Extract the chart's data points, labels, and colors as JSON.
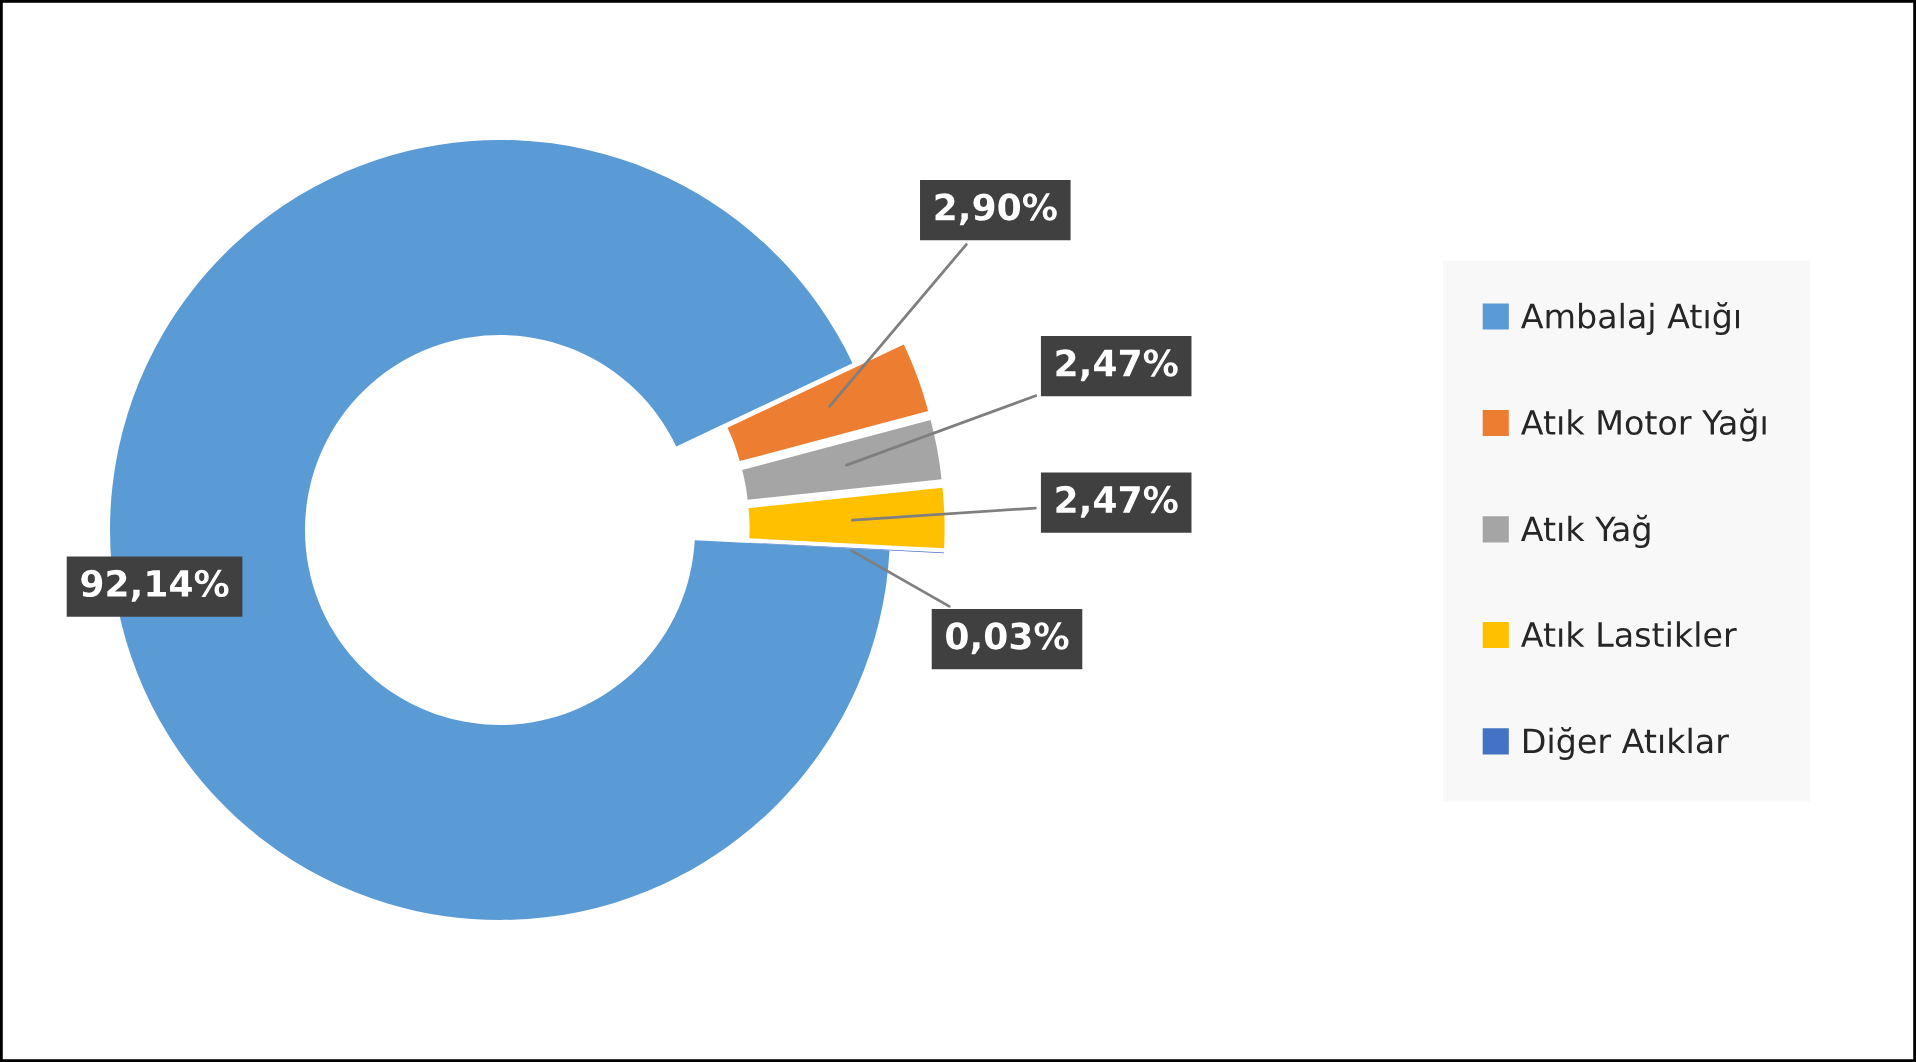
{
  "chart_data": {
    "type": "donut",
    "categories": [
      "Ambalaj Atığı",
      "Atık Motor Yağı",
      "Atık Yağ",
      "Atık Lastikler",
      "Diğer Atıklar"
    ],
    "values": [
      92.14,
      2.9,
      2.47,
      2.47,
      0.03
    ],
    "colors": [
      "#5b9bd5",
      "#ed7d31",
      "#a5a5a5",
      "#ffc000",
      "#4472c4"
    ],
    "value_labels": [
      "92,14%",
      "2,90%",
      "2,47%",
      "2,47%",
      "0,03%"
    ],
    "legend": "right"
  }
}
